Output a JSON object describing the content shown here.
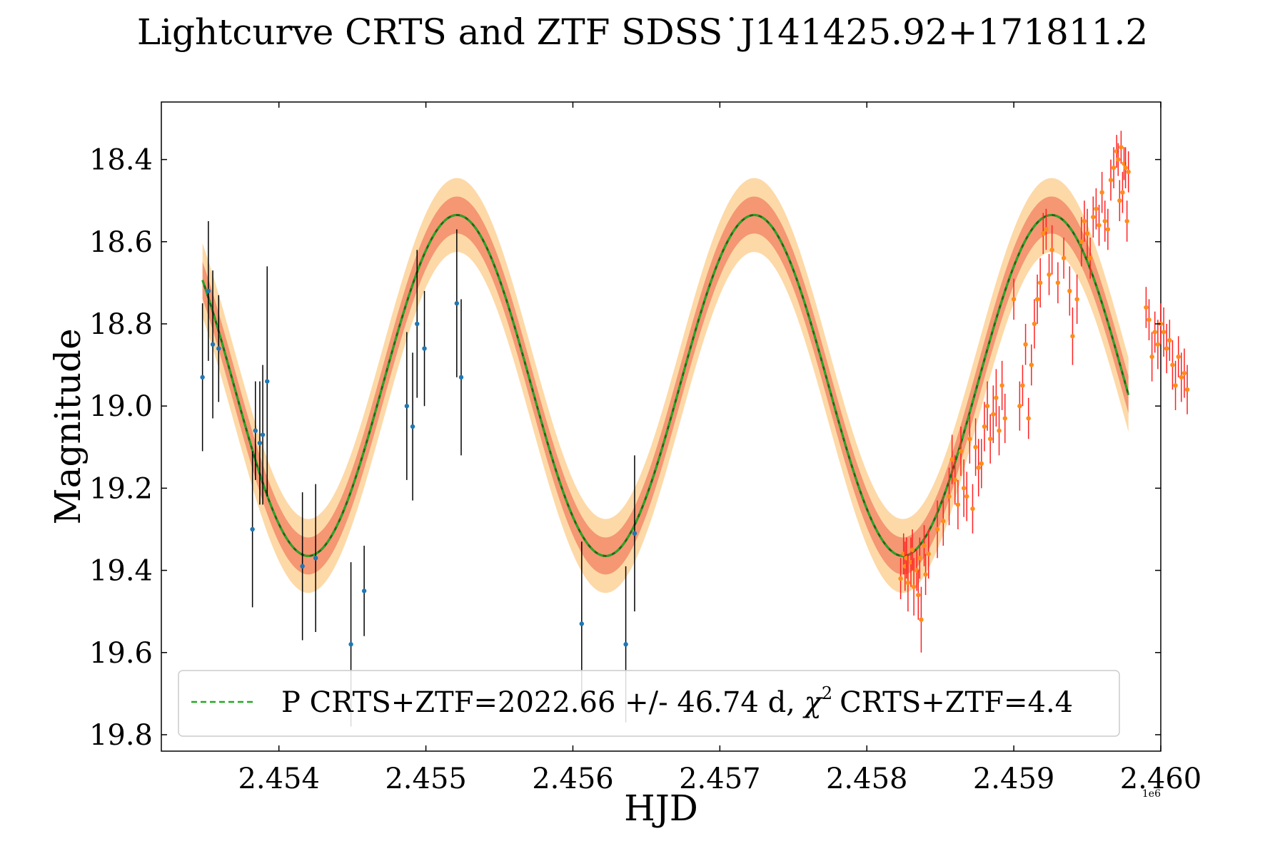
{
  "chart_data": {
    "type": "scatter",
    "title": "Lightcurve CRTS and ZTF SDSS˙J141425.92+171811.2",
    "xlabel": "HJD",
    "ylabel": "Magnitude",
    "x_offset_label": "1e6",
    "xlim": [
      2.4532,
      2.46
    ],
    "ylim": [
      19.84,
      18.26
    ],
    "y_inverted": true,
    "xticks": [
      2.454,
      2.455,
      2.456,
      2.457,
      2.458,
      2.459,
      2.46
    ],
    "xtick_labels": [
      "2.454",
      "2.455",
      "2.456",
      "2.457",
      "2.458",
      "2.459",
      "2.460"
    ],
    "yticks": [
      18.4,
      18.6,
      18.8,
      19.0,
      19.2,
      19.4,
      19.6,
      19.8
    ],
    "ytick_labels": [
      "18.4",
      "18.6",
      "18.8",
      "19.0",
      "19.2",
      "19.4",
      "19.6",
      "19.8"
    ],
    "legend": {
      "position": "lower-center",
      "label_prefix": "P CRTS+ZTF=2022.66 +/- 46.74 d,",
      "chi_symbol": "χ",
      "chi_exp": "2",
      "label_suffix": "CRTS+ZTF=4.4"
    },
    "model": {
      "name": "P CRTS+ZTF=2022.66 +/- 46.74 d",
      "type": "sinusoid",
      "period": 0.00202266,
      "mean": 18.95,
      "amplitude": 0.415,
      "phase_ref_min_x": 2.4542,
      "x_range": [
        2.45348,
        2.45978
      ],
      "band_inner": 0.045,
      "band_outer": 0.09,
      "colors": {
        "solid": "#1a6b1a",
        "dashed": "#22aa22",
        "inner_band": "#f08060",
        "outer_band": "#fdd9a8"
      }
    },
    "series": [
      {
        "name": "CRTS",
        "marker_color": "#1f77b4",
        "err_color": "#000000",
        "points": [
          [
            2.45348,
            18.93,
            0.18
          ],
          [
            2.45352,
            18.72,
            0.17
          ],
          [
            2.45355,
            18.85,
            0.18
          ],
          [
            2.45359,
            18.86,
            0.13
          ],
          [
            2.45382,
            19.3,
            0.19
          ],
          [
            2.45384,
            19.06,
            0.12
          ],
          [
            2.45387,
            19.09,
            0.15
          ],
          [
            2.45389,
            19.07,
            0.17
          ],
          [
            2.45392,
            18.94,
            0.28
          ],
          [
            2.45416,
            19.39,
            0.18
          ],
          [
            2.45425,
            19.37,
            0.18
          ],
          [
            2.45449,
            19.58,
            0.2
          ],
          [
            2.45458,
            19.45,
            0.11
          ],
          [
            2.45487,
            19.0,
            0.18
          ],
          [
            2.45491,
            19.05,
            0.18
          ],
          [
            2.45494,
            18.8,
            0.18
          ],
          [
            2.45499,
            18.86,
            0.14
          ],
          [
            2.45521,
            18.75,
            0.18
          ],
          [
            2.45524,
            18.93,
            0.19
          ],
          [
            2.45606,
            19.53,
            0.2
          ],
          [
            2.45636,
            19.58,
            0.19
          ],
          [
            2.45642,
            19.31,
            0.19
          ]
        ]
      },
      {
        "name": "ZTF",
        "marker_color": "#ff8c1a",
        "err_color": "#ff2020",
        "points": [
          [
            2.45823,
            19.42,
            0.05
          ],
          [
            2.45825,
            19.36,
            0.05
          ],
          [
            2.45826,
            19.39,
            0.06
          ],
          [
            2.45827,
            19.37,
            0.05
          ],
          [
            2.45828,
            19.43,
            0.07
          ],
          [
            2.4583,
            19.38,
            0.06
          ],
          [
            2.45831,
            19.35,
            0.05
          ],
          [
            2.45832,
            19.44,
            0.07
          ],
          [
            2.45834,
            19.4,
            0.05
          ],
          [
            2.45835,
            19.46,
            0.06
          ],
          [
            2.45836,
            19.37,
            0.05
          ],
          [
            2.45837,
            19.52,
            0.08
          ],
          [
            2.45839,
            19.34,
            0.05
          ],
          [
            2.4584,
            19.41,
            0.05
          ],
          [
            2.45842,
            19.36,
            0.06
          ],
          [
            2.45848,
            19.3,
            0.07
          ],
          [
            2.45852,
            19.28,
            0.06
          ],
          [
            2.45856,
            19.22,
            0.07
          ],
          [
            2.45858,
            19.13,
            0.06
          ],
          [
            2.4586,
            19.18,
            0.06
          ],
          [
            2.45862,
            19.24,
            0.06
          ],
          [
            2.45864,
            19.11,
            0.06
          ],
          [
            2.45866,
            19.2,
            0.07
          ],
          [
            2.45868,
            19.22,
            0.06
          ],
          [
            2.4587,
            19.08,
            0.06
          ],
          [
            2.45872,
            19.25,
            0.06
          ],
          [
            2.45874,
            19.1,
            0.07
          ],
          [
            2.45876,
            19.15,
            0.07
          ],
          [
            2.45878,
            19.14,
            0.06
          ],
          [
            2.4588,
            19.05,
            0.06
          ],
          [
            2.45882,
            19.0,
            0.06
          ],
          [
            2.45884,
            19.08,
            0.06
          ],
          [
            2.45886,
            19.02,
            0.07
          ],
          [
            2.45888,
            18.98,
            0.07
          ],
          [
            2.4589,
            19.06,
            0.06
          ],
          [
            2.45892,
            18.95,
            0.06
          ],
          [
            2.45894,
            19.03,
            0.06
          ],
          [
            2.459,
            18.74,
            0.05
          ],
          [
            2.45904,
            19.0,
            0.06
          ],
          [
            2.45906,
            18.95,
            0.05
          ],
          [
            2.45908,
            18.85,
            0.05
          ],
          [
            2.4591,
            19.03,
            0.05
          ],
          [
            2.45912,
            18.9,
            0.05
          ],
          [
            2.45914,
            18.8,
            0.06
          ],
          [
            2.45916,
            18.74,
            0.06
          ],
          [
            2.45918,
            18.7,
            0.06
          ],
          [
            2.4592,
            18.58,
            0.05
          ],
          [
            2.45922,
            18.57,
            0.05
          ],
          [
            2.45924,
            18.68,
            0.05
          ],
          [
            2.45926,
            18.62,
            0.06
          ],
          [
            2.4593,
            18.7,
            0.05
          ],
          [
            2.45934,
            18.64,
            0.05
          ],
          [
            2.45938,
            18.72,
            0.06
          ],
          [
            2.4594,
            18.83,
            0.07
          ],
          [
            2.45943,
            18.74,
            0.06
          ],
          [
            2.45946,
            18.6,
            0.06
          ],
          [
            2.45948,
            18.55,
            0.05
          ],
          [
            2.4595,
            18.58,
            0.06
          ],
          [
            2.45952,
            18.64,
            0.05
          ],
          [
            2.45954,
            18.54,
            0.05
          ],
          [
            2.45956,
            18.52,
            0.05
          ],
          [
            2.45958,
            18.56,
            0.05
          ],
          [
            2.4596,
            18.48,
            0.05
          ],
          [
            2.45962,
            18.55,
            0.05
          ],
          [
            2.45964,
            18.57,
            0.05
          ],
          [
            2.45966,
            18.45,
            0.05
          ],
          [
            2.45968,
            18.42,
            0.05
          ],
          [
            2.4597,
            18.38,
            0.04
          ],
          [
            2.45971,
            18.4,
            0.04
          ],
          [
            2.45972,
            18.5,
            0.05
          ],
          [
            2.45973,
            18.37,
            0.04
          ],
          [
            2.45974,
            18.48,
            0.05
          ],
          [
            2.45975,
            18.41,
            0.04
          ],
          [
            2.45976,
            18.42,
            0.05
          ],
          [
            2.45977,
            18.55,
            0.05
          ],
          [
            2.45978,
            18.43,
            0.05
          ],
          [
            2.4599,
            18.76,
            0.05
          ],
          [
            2.45992,
            18.79,
            0.05
          ],
          [
            2.45994,
            18.88,
            0.06
          ],
          [
            2.45996,
            18.82,
            0.05
          ],
          [
            2.45998,
            18.85,
            0.06
          ],
          [
            2.46,
            18.8,
            0.05
          ],
          [
            2.46002,
            18.82,
            0.06
          ],
          [
            2.46004,
            18.86,
            0.06
          ],
          [
            2.46006,
            18.84,
            0.05
          ],
          [
            2.46008,
            18.9,
            0.06
          ],
          [
            2.4601,
            18.95,
            0.06
          ],
          [
            2.46012,
            18.88,
            0.05
          ],
          [
            2.46014,
            18.93,
            0.06
          ],
          [
            2.46016,
            18.92,
            0.06
          ],
          [
            2.46018,
            18.96,
            0.06
          ]
        ]
      }
    ]
  }
}
